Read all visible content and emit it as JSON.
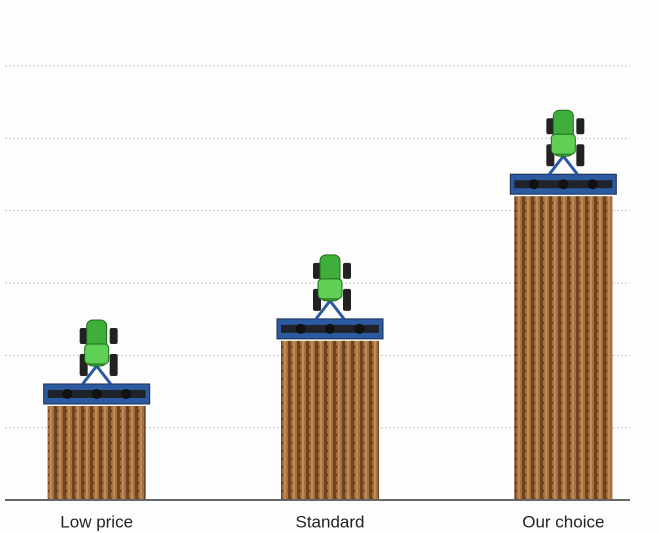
{
  "chart_data": {
    "type": "bar",
    "categories": [
      "Low price",
      "Standard",
      "Our choice"
    ],
    "values": [
      1.3,
      2.2,
      4.2
    ],
    "color": "#8b5a2b",
    "ylim": [
      0,
      6
    ],
    "yticks": [
      1,
      2,
      3,
      4,
      5,
      6
    ],
    "grid": true
  }
}
